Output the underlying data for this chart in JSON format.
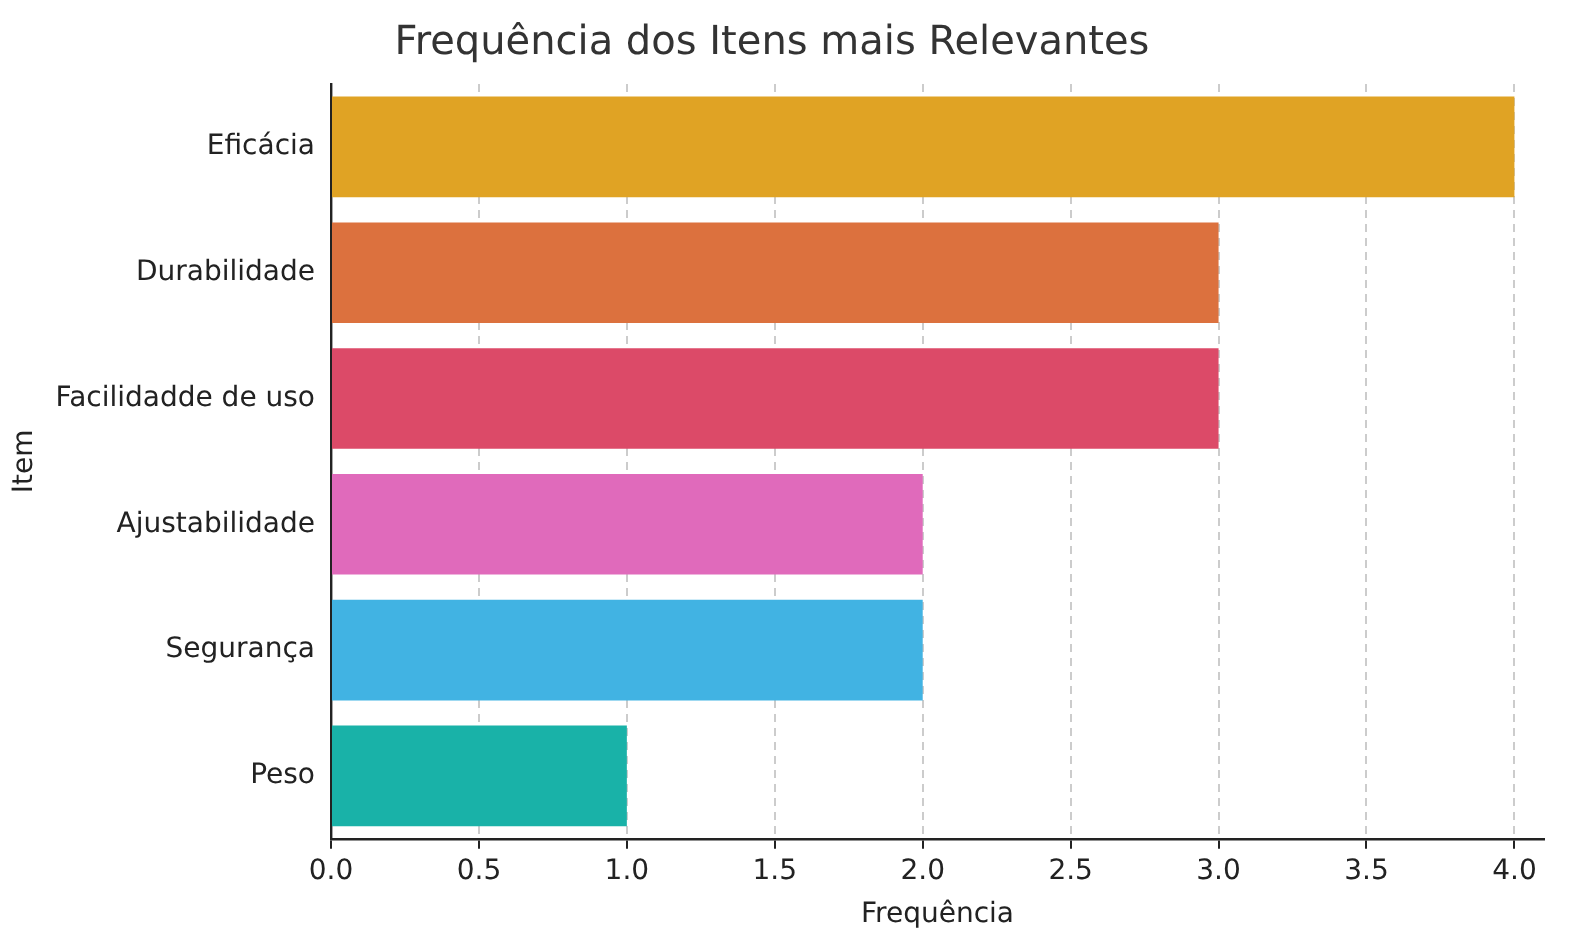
{
  "chart_data": {
    "type": "bar",
    "orientation": "horizontal",
    "title": "Frequência dos Itens mais Relevantes",
    "xlabel": "Frequência",
    "ylabel": "Item",
    "categories": [
      "Eficácia",
      "Durabilidade",
      "Facilidadde de uso",
      "Ajustabilidade",
      "Segurança",
      "Peso"
    ],
    "values": [
      4,
      3,
      3,
      2,
      2,
      1
    ],
    "colors": [
      "#e0a324",
      "#dc713e",
      "#dc4a68",
      "#e06abb",
      "#41b3e3",
      "#19b2a8"
    ],
    "xlim": [
      0,
      4.1
    ],
    "xticks": [
      {
        "value": 0,
        "label": "0.0"
      },
      0.5,
      {
        "value": 1,
        "label": "1.0"
      },
      1.5,
      {
        "value": 2,
        "label": "2.0"
      },
      2.5,
      {
        "value": 3,
        "label": "3.0"
      },
      3.5,
      {
        "value": 4,
        "label": "4.0"
      }
    ],
    "grid": "x",
    "legend": false
  }
}
